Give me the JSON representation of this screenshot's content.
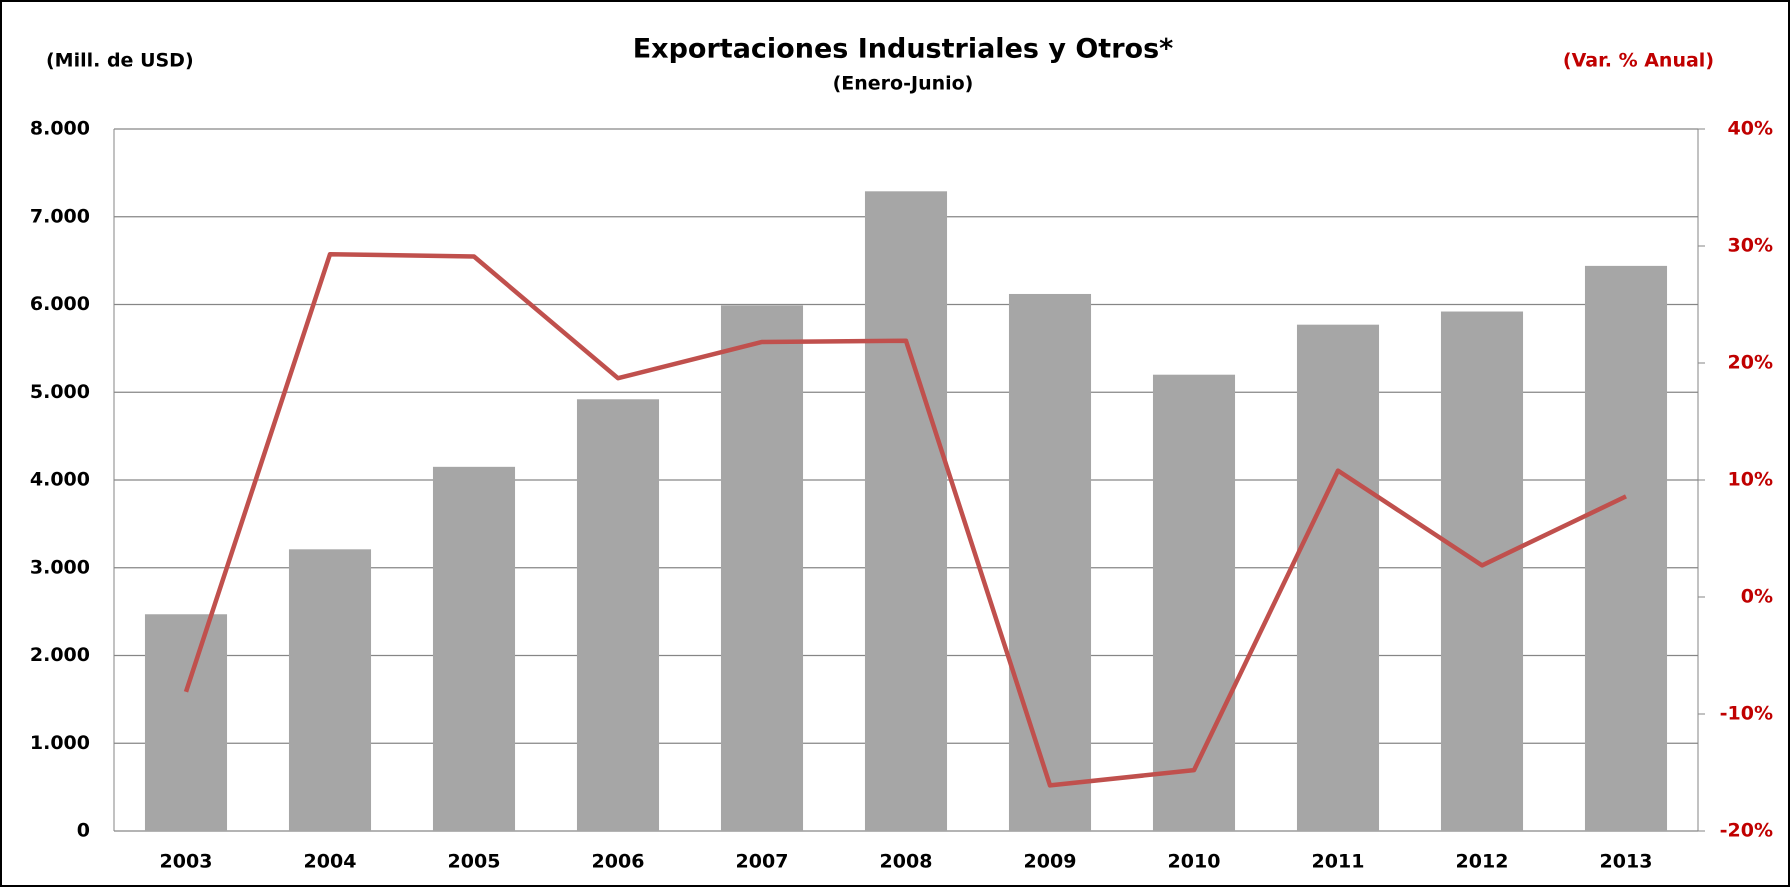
{
  "chart_data": {
    "type": "bar",
    "title": "Exportaciones Industriales y Otros*",
    "subtitle": "(Enero-Junio)",
    "y_label": "(Mill. de USD)",
    "y2_label": "(Var. % Anual)",
    "categories": [
      "2003",
      "2004",
      "2005",
      "2006",
      "2007",
      "2008",
      "2009",
      "2010",
      "2011",
      "2012",
      "2013"
    ],
    "series": [
      {
        "type": "bar",
        "color": "#a6a6a6",
        "values": [
          2470,
          3210,
          4150,
          4920,
          5990,
          7290,
          6120,
          5200,
          5770,
          5920,
          6440
        ]
      },
      {
        "type": "line",
        "axis": "y2",
        "color": "#c0504d",
        "values": [
          -8.1,
          29.3,
          29.1,
          18.7,
          21.8,
          21.9,
          -16.1,
          -14.8,
          10.8,
          2.7,
          8.6
        ]
      }
    ],
    "ylim": [
      0,
      8000
    ],
    "yticks": [
      0,
      {
        "value": 1000,
        "label": "1.000"
      },
      {
        "value": 2000,
        "label": "2.000"
      },
      {
        "value": 3000,
        "label": "3.000"
      },
      {
        "value": 4000,
        "label": "4.000"
      },
      {
        "value": 5000,
        "label": "5.000"
      },
      {
        "value": 6000,
        "label": "6.000"
      },
      {
        "value": 7000,
        "label": "7.000"
      },
      {
        "value": 8000,
        "label": "8.000"
      }
    ],
    "y2lim": [
      -20,
      40
    ],
    "y2ticks": [
      {
        "value": -20,
        "label": "-20%"
      },
      {
        "value": -10,
        "label": "-10%"
      },
      {
        "value": 0,
        "label": "0%"
      },
      {
        "value": 10,
        "label": "10%"
      },
      {
        "value": 20,
        "label": "20%"
      },
      {
        "value": 30,
        "label": "30%"
      },
      {
        "value": 40,
        "label": "40%"
      }
    ],
    "grid": true
  }
}
